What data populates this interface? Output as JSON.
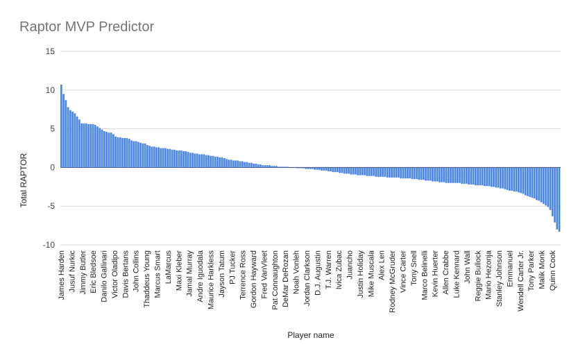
{
  "chart_data": {
    "type": "bar",
    "title": "Raptor MVP Predictor",
    "xlabel": "Player name",
    "ylabel": "Total RAPTOR",
    "ylim": [
      -10,
      15
    ],
    "yticks": [
      15,
      10,
      5,
      0,
      -5,
      -10
    ],
    "grid": true,
    "legend": "none",
    "bar_color": "#4a86e8",
    "tick_labels": [
      "James Harden",
      "Jusuf Nurkic",
      "Jimmy Butler",
      "Eric Bledsoe",
      "Danilo Gallinari",
      "Victor Oladipo",
      "Davis Bertans",
      "John Collins",
      "Thaddeus Young",
      "Marcus Smart",
      "LaMarcus",
      "Maxi Kleber",
      "Jamal Murray",
      "Andre Iguodala",
      "Maurice Harkless",
      "Jayson Tatum",
      "PJ Tucker",
      "Terrence Ross",
      "Gordon Hayward",
      "Fred VanVleet",
      "Pat Connaughton",
      "DeMar DeRozan",
      "Noah Vonleh",
      "Jordan Clarkson",
      "D.J. Augustin",
      "T.J. Warren",
      "Ivica Zubac",
      "Juancho",
      "Justin Holiday",
      "Mike Muscala",
      "Alex Len",
      "Rodney McGruder",
      "Vince Carter",
      "Tony Snell",
      "Marco Belinelli",
      "Kevin Huerter",
      "Allen Crabbe",
      "Luke Kennard",
      "John Wall",
      "Reggie Bullock",
      "Mario Hezonja",
      "Stanley Johnson",
      "Emmanuel",
      "Wendell Carter Jr.",
      "Tony Parker",
      "Malik Monk",
      "Quinn Cook"
    ],
    "values": [
      10.7,
      9.5,
      8.7,
      7.8,
      7.4,
      7.2,
      7.0,
      6.6,
      6.2,
      5.7,
      5.7,
      5.7,
      5.6,
      5.6,
      5.6,
      5.5,
      5.3,
      5.1,
      4.9,
      4.7,
      4.6,
      4.5,
      4.5,
      4.3,
      4.0,
      3.9,
      3.9,
      3.8,
      3.8,
      3.8,
      3.7,
      3.5,
      3.4,
      3.4,
      3.3,
      3.2,
      3.1,
      3.1,
      2.9,
      2.8,
      2.7,
      2.7,
      2.6,
      2.6,
      2.5,
      2.5,
      2.5,
      2.4,
      2.4,
      2.3,
      2.3,
      2.2,
      2.2,
      2.2,
      2.1,
      2.1,
      2.0,
      1.9,
      1.9,
      1.8,
      1.8,
      1.7,
      1.7,
      1.7,
      1.6,
      1.6,
      1.5,
      1.5,
      1.4,
      1.4,
      1.3,
      1.3,
      1.2,
      1.1,
      1.0,
      1.0,
      0.9,
      0.9,
      0.9,
      0.8,
      0.8,
      0.7,
      0.7,
      0.6,
      0.6,
      0.5,
      0.5,
      0.4,
      0.4,
      0.3,
      0.3,
      0.3,
      0.3,
      0.2,
      0.2,
      0.2,
      0.1,
      0.1,
      0.1,
      0.1,
      0.1,
      0.0,
      0.0,
      0.0,
      -0.1,
      -0.1,
      -0.1,
      -0.1,
      -0.2,
      -0.2,
      -0.2,
      -0.2,
      -0.3,
      -0.3,
      -0.3,
      -0.4,
      -0.4,
      -0.4,
      -0.5,
      -0.5,
      -0.6,
      -0.6,
      -0.6,
      -0.7,
      -0.7,
      -0.8,
      -0.8,
      -0.8,
      -0.9,
      -0.9,
      -0.9,
      -1.0,
      -1.0,
      -1.0,
      -1.0,
      -1.1,
      -1.1,
      -1.1,
      -1.1,
      -1.2,
      -1.2,
      -1.2,
      -1.2,
      -1.2,
      -1.3,
      -1.3,
      -1.3,
      -1.3,
      -1.3,
      -1.3,
      -1.4,
      -1.4,
      -1.4,
      -1.4,
      -1.4,
      -1.5,
      -1.5,
      -1.5,
      -1.6,
      -1.6,
      -1.6,
      -1.7,
      -1.7,
      -1.7,
      -1.8,
      -1.8,
      -1.8,
      -1.9,
      -1.9,
      -1.9,
      -2.0,
      -2.0,
      -2.0,
      -2.0,
      -2.0,
      -2.0,
      -2.0,
      -2.1,
      -2.1,
      -2.1,
      -2.2,
      -2.2,
      -2.2,
      -2.3,
      -2.3,
      -2.3,
      -2.3,
      -2.4,
      -2.4,
      -2.4,
      -2.5,
      -2.5,
      -2.6,
      -2.6,
      -2.7,
      -2.7,
      -2.8,
      -2.9,
      -3.0,
      -3.0,
      -3.1,
      -3.1,
      -3.2,
      -3.3,
      -3.4,
      -3.6,
      -3.7,
      -3.8,
      -3.9,
      -4.0,
      -4.2,
      -4.3,
      -4.5,
      -4.7,
      -4.9,
      -5.1,
      -5.5,
      -6.3,
      -7.1,
      -8.0,
      -8.3
    ]
  }
}
